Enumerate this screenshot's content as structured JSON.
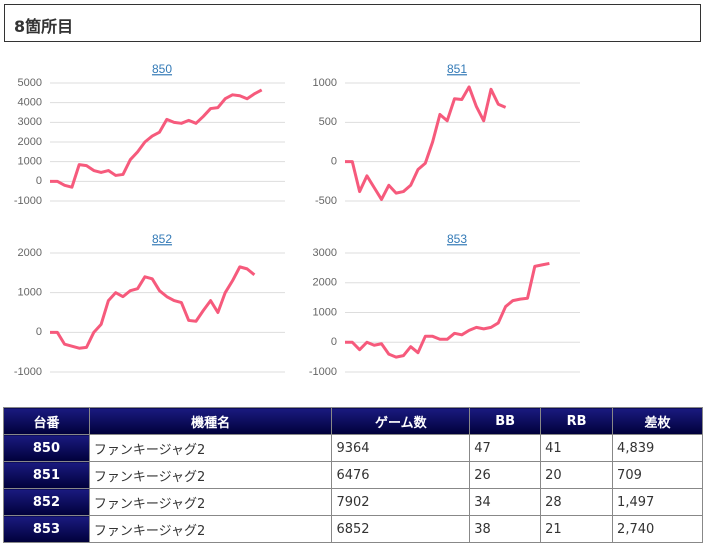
{
  "header": {
    "title": "8箇所目"
  },
  "chart_data": [
    {
      "type": "line",
      "title": "850",
      "color": "#f65a7c",
      "ylim": [
        -1000,
        5000
      ],
      "yticks": [
        -1000,
        0,
        1000,
        2000,
        3000,
        4000,
        5000
      ],
      "grid": true,
      "values": [
        0,
        0,
        -200,
        -300,
        850,
        800,
        550,
        450,
        550,
        300,
        350,
        1100,
        1500,
        2000,
        2300,
        2500,
        3150,
        3000,
        2950,
        3100,
        2950,
        3300,
        3700,
        3750,
        4200,
        4400,
        4350,
        4200,
        4450,
        4650
      ]
    },
    {
      "type": "line",
      "title": "851",
      "color": "#f65a7c",
      "ylim": [
        -500,
        1000
      ],
      "yticks": [
        -500,
        0,
        500,
        1000
      ],
      "grid": true,
      "values": [
        0,
        0,
        -380,
        -180,
        -330,
        -480,
        -300,
        -400,
        -380,
        -300,
        -100,
        -20,
        250,
        600,
        520,
        800,
        790,
        950,
        700,
        520,
        920,
        730,
        690
      ]
    },
    {
      "type": "line",
      "title": "852",
      "color": "#f65a7c",
      "ylim": [
        -1000,
        2000
      ],
      "yticks": [
        -1000,
        0,
        1000,
        2000
      ],
      "grid": true,
      "values": [
        0,
        0,
        -300,
        -350,
        -400,
        -380,
        0,
        200,
        800,
        1000,
        900,
        1050,
        1100,
        1400,
        1350,
        1050,
        900,
        800,
        750,
        300,
        280,
        550,
        800,
        500,
        1000,
        1300,
        1650,
        1600,
        1450
      ]
    },
    {
      "type": "line",
      "title": "853",
      "color": "#f65a7c",
      "ylim": [
        -1000,
        3000
      ],
      "yticks": [
        -1000,
        0,
        1000,
        2000,
        3000
      ],
      "grid": true,
      "values": [
        0,
        0,
        -250,
        0,
        -100,
        -50,
        -400,
        -500,
        -450,
        -150,
        -350,
        200,
        200,
        100,
        100,
        300,
        250,
        400,
        500,
        450,
        500,
        650,
        1200,
        1400,
        1450,
        1480,
        2550,
        2600,
        2650
      ]
    }
  ],
  "table": {
    "header": [
      "台番",
      "機種名",
      "ゲーム数",
      "BB",
      "RB",
      "差枚"
    ],
    "rows": [
      [
        "850",
        "ファンキージャグ2",
        "9364",
        "47",
        "41",
        "4,839"
      ],
      [
        "851",
        "ファンキージャグ2",
        "6476",
        "26",
        "20",
        "709"
      ],
      [
        "852",
        "ファンキージャグ2",
        "7902",
        "34",
        "28",
        "1,497"
      ],
      [
        "853",
        "ファンキージャグ2",
        "6852",
        "38",
        "21",
        "2,740"
      ]
    ]
  }
}
